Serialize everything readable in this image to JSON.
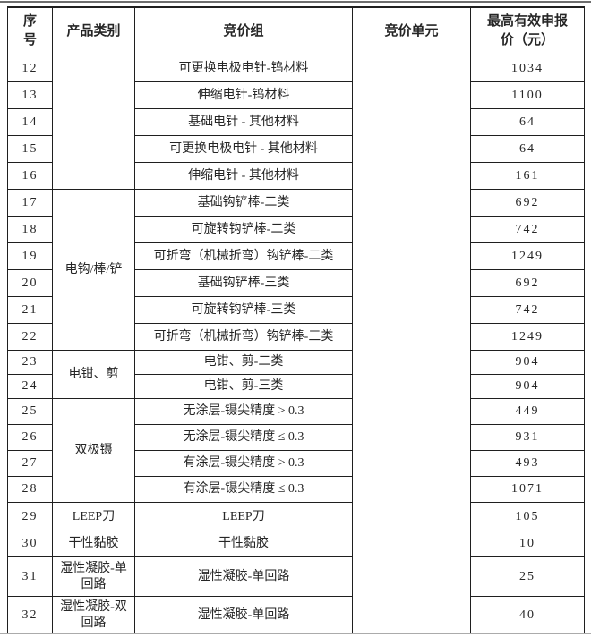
{
  "page": {
    "background": "#ffffff",
    "border_color": "#1f1f1f",
    "text_color": "#262626",
    "top_rule_color": "#6e6e6e",
    "bottom_rule_color": "#ababab"
  },
  "table": {
    "headers": {
      "seq": "序号",
      "category": "产品类别",
      "group": "竞价组",
      "unit": "竞价单元",
      "price": "最高有效申报价（元）"
    },
    "unit_value": "",
    "categories": [
      {
        "label": "",
        "span": 5
      },
      {
        "label": "电钩/棒/铲",
        "span": 6
      },
      {
        "label": "电钳、剪",
        "span": 2
      },
      {
        "label": "双极镊",
        "span": 4
      },
      {
        "label": "LEEP刀",
        "span": 1
      },
      {
        "label": "干性黏胶",
        "span": 1
      },
      {
        "label": "湿性凝胶-单回路",
        "span": 1
      },
      {
        "label": "湿性凝胶-双回路",
        "span": 1
      }
    ],
    "rows": [
      {
        "seq": "12",
        "group": "可更换电极电针-钨材料",
        "price": "1034"
      },
      {
        "seq": "13",
        "group": "伸缩电针-钨材料",
        "price": "1100"
      },
      {
        "seq": "14",
        "group": "基础电针 - 其他材料",
        "price": "64"
      },
      {
        "seq": "15",
        "group": "可更换电极电针 - 其他材料",
        "price": "64"
      },
      {
        "seq": "16",
        "group": "伸缩电针 - 其他材料",
        "price": "161"
      },
      {
        "seq": "17",
        "group": "基础钩铲棒-二类",
        "price": "692"
      },
      {
        "seq": "18",
        "group": "可旋转钩铲棒-二类",
        "price": "742"
      },
      {
        "seq": "19",
        "group": "可折弯（机械折弯）钩铲棒-二类",
        "price": "1249"
      },
      {
        "seq": "20",
        "group": "基础钩铲棒-三类",
        "price": "692"
      },
      {
        "seq": "21",
        "group": "可旋转钩铲棒-三类",
        "price": "742"
      },
      {
        "seq": "22",
        "group": "可折弯（机械折弯）钩铲棒-三类",
        "price": "1249"
      },
      {
        "seq": "23",
        "group": "电钳、剪-二类",
        "price": "904"
      },
      {
        "seq": "24",
        "group": "电钳、剪-三类",
        "price": "904"
      },
      {
        "seq": "25",
        "group": "无涂层-镊尖精度 > 0.3",
        "price": "449"
      },
      {
        "seq": "26",
        "group": "无涂层-镊尖精度 ≤ 0.3",
        "price": "931"
      },
      {
        "seq": "27",
        "group": "有涂层-镊尖精度 > 0.3",
        "price": "493"
      },
      {
        "seq": "28",
        "group": "有涂层-镊尖精度 ≤ 0.3",
        "price": "1071"
      },
      {
        "seq": "29",
        "group": "LEEP刀",
        "price": "105"
      },
      {
        "seq": "30",
        "group": "干性黏胶",
        "price": "10"
      },
      {
        "seq": "31",
        "group": "湿性凝胶-单回路",
        "price": "25"
      },
      {
        "seq": "32",
        "group": "湿性凝胶-单回路",
        "price": "40"
      }
    ]
  }
}
